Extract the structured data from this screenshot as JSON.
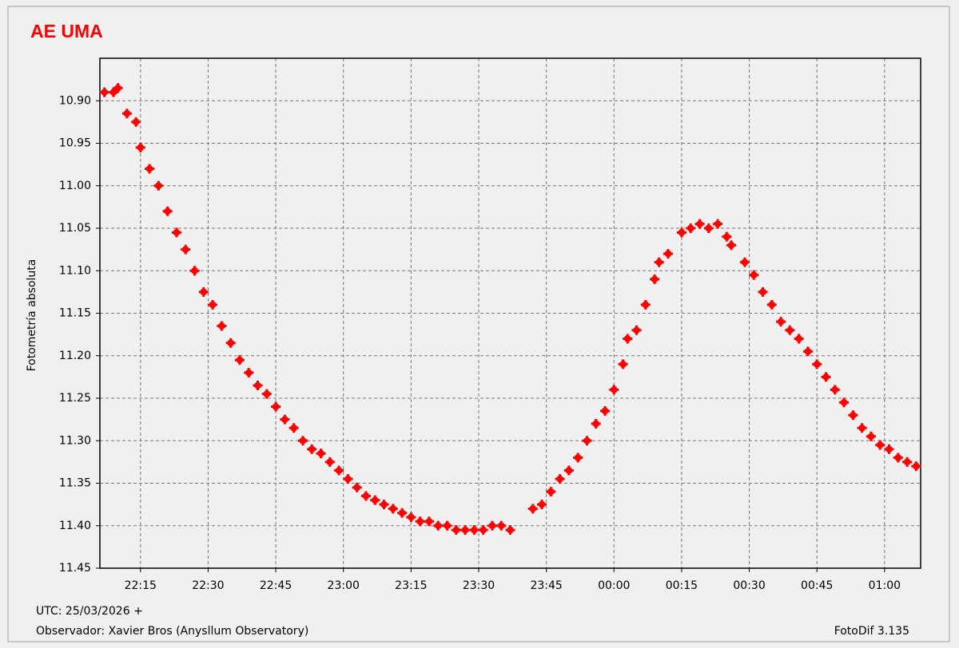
{
  "chart_data": {
    "type": "scatter",
    "title": "AE UMA",
    "y_label": "Fotometría absoluta",
    "utc_note": "UTC: 25/03/2026 +",
    "observer_note": "Observador: Xavier Bros (Anysllum Observatory)",
    "software_note": "FotoDif 3.135",
    "color": "#ff0000",
    "grid": true,
    "y_inverted": true,
    "xlim": [
      "22:06",
      "01:08"
    ],
    "xticks": [
      "22:15",
      "22:30",
      "22:45",
      "23:00",
      "23:15",
      "23:30",
      "23:45",
      "00:00",
      "00:15",
      "00:30",
      "00:45",
      "01:00"
    ],
    "ylim": [
      11.45,
      10.85
    ],
    "yticks": [
      {
        "value": 10.9,
        "label": "10.90"
      },
      10.95,
      {
        "value": 11,
        "label": "11.00"
      },
      11.05,
      {
        "value": 11.1,
        "label": "11.10"
      },
      11.15,
      {
        "value": 11.2,
        "label": "11.20"
      },
      11.25,
      {
        "value": 11.3,
        "label": "11.30"
      },
      11.35,
      {
        "value": 11.4,
        "label": "11.40"
      },
      11.45
    ],
    "x": [
      "22:07",
      "22:09",
      "22:10",
      "22:12",
      "22:14",
      "22:15",
      "22:17",
      "22:19",
      "22:21",
      "22:23",
      "22:25",
      "22:27",
      "22:29",
      "22:31",
      "22:33",
      "22:35",
      "22:37",
      "22:39",
      "22:41",
      "22:43",
      "22:45",
      "22:47",
      "22:49",
      "22:51",
      "22:53",
      "22:55",
      "22:57",
      "22:59",
      "23:01",
      "23:03",
      "23:05",
      "23:07",
      "23:09",
      "23:11",
      "23:13",
      "23:15",
      "23:17",
      "23:19",
      "23:21",
      "23:23",
      "23:25",
      "23:27",
      "23:29",
      "23:31",
      "23:33",
      "23:35",
      "23:37",
      "23:42",
      "23:44",
      "23:46",
      "23:48",
      "23:50",
      "23:52",
      "23:54",
      "23:56",
      "23:58",
      "00:00",
      "00:02",
      "00:03",
      "00:05",
      "00:07",
      "00:09",
      "00:10",
      "00:12",
      "00:15",
      "00:17",
      "00:19",
      "00:21",
      "00:23",
      "00:25",
      "00:26",
      "00:29",
      "00:31",
      "00:33",
      "00:35",
      "00:37",
      "00:39",
      "00:41",
      "00:43",
      "00:45",
      "00:47",
      "00:49",
      "00:51",
      "00:53",
      "00:55",
      "00:57",
      "00:59",
      "01:01",
      "01:03",
      "01:05",
      "01:07"
    ],
    "values": [
      10.89,
      10.89,
      10.885,
      10.915,
      10.925,
      10.955,
      10.98,
      11.0,
      11.03,
      11.055,
      11.075,
      11.1,
      11.125,
      11.14,
      11.165,
      11.185,
      11.205,
      11.22,
      11.235,
      11.245,
      11.26,
      11.275,
      11.285,
      11.3,
      11.31,
      11.315,
      11.325,
      11.335,
      11.345,
      11.355,
      11.365,
      11.37,
      11.375,
      11.38,
      11.385,
      11.39,
      11.395,
      11.395,
      11.4,
      11.4,
      11.405,
      11.405,
      11.405,
      11.405,
      11.4,
      11.4,
      11.405,
      11.38,
      11.375,
      11.36,
      11.345,
      11.335,
      11.32,
      11.3,
      11.28,
      11.265,
      11.24,
      11.21,
      11.18,
      11.17,
      11.14,
      11.11,
      11.09,
      11.08,
      11.055,
      11.05,
      11.045,
      11.05,
      11.045,
      11.06,
      11.07,
      11.09,
      11.105,
      11.125,
      11.14,
      11.16,
      11.17,
      11.18,
      11.195,
      11.21,
      11.225,
      11.24,
      11.255,
      11.27,
      11.285,
      11.295,
      11.305,
      11.31,
      11.32,
      11.325,
      11.33
    ]
  }
}
